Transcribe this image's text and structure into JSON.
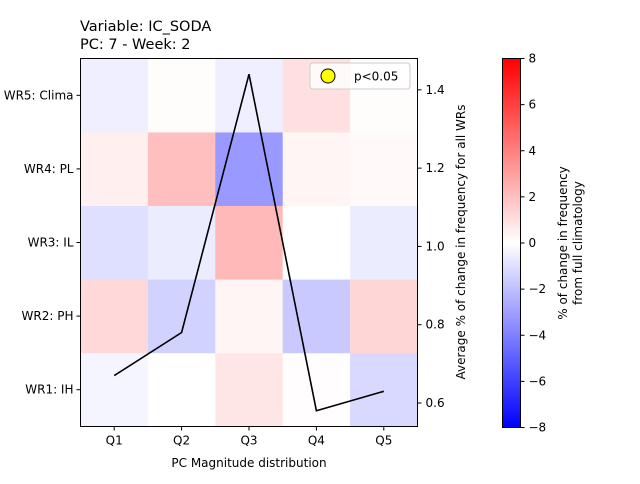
{
  "chart_data": {
    "type": "heatmap",
    "title_line1": "Variable: IC_SODA",
    "title_line2": "PC: 7 - Week: 2",
    "xlabel": "PC Magnitude distribution",
    "y2label": "Average % of change in frequency for all WRs",
    "colorbar_label_line1": "% of change in frequency",
    "colorbar_label_line2": "from full climatology",
    "categories": [
      "Q1",
      "Q2",
      "Q3",
      "Q4",
      "Q5"
    ],
    "rows": [
      "WR1: IH",
      "WR2: PH",
      "WR3: IL",
      "WR4: PL",
      "WR5: Clima"
    ],
    "values": [
      [
        -0.3,
        0.0,
        0.8,
        0.05,
        -1.2
      ],
      [
        1.2,
        -1.4,
        0.3,
        -1.7,
        1.3
      ],
      [
        -1.0,
        -0.6,
        2.2,
        0.0,
        -0.6
      ],
      [
        0.5,
        2.0,
        -3.2,
        0.3,
        0.2
      ],
      [
        -0.5,
        0.1,
        -0.5,
        1.0,
        0.1
      ]
    ],
    "line": {
      "x": [
        "Q1",
        "Q2",
        "Q3",
        "Q4",
        "Q5"
      ],
      "y": [
        0.67,
        0.78,
        1.44,
        0.58,
        0.63
      ],
      "color": "#000000"
    },
    "y2lim": [
      0.54,
      1.48
    ],
    "y2ticks": [
      0.6,
      0.8,
      1.0,
      1.2,
      1.4
    ],
    "colorbar": {
      "vmin": -8,
      "vmax": 8,
      "ticks": [
        -8,
        -6,
        -4,
        -2,
        0,
        2,
        4,
        6,
        8
      ],
      "colormap": "bwr"
    },
    "legend": {
      "label": "p<0.05",
      "marker_color": "#ffff00",
      "placement": "top-right"
    }
  }
}
